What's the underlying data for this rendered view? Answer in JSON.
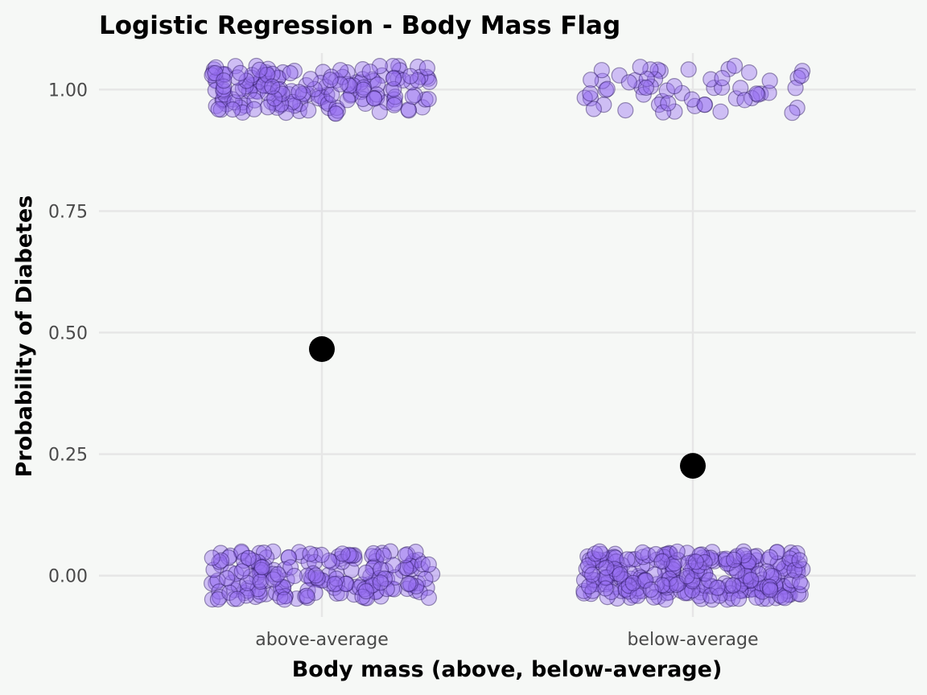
{
  "chart_data": {
    "type": "scatter",
    "title": "Logistic Regression - Body Mass Flag",
    "xlabel": "Body mass (above, below-average)",
    "ylabel": "Probability of Diabetes",
    "categories": [
      "above-average",
      "below-average"
    ],
    "yticks": [
      0.0,
      0.25,
      0.5,
      0.75,
      1.0
    ],
    "ytick_labels": [
      "0.00",
      "0.25",
      "0.50",
      "0.75",
      "1.00"
    ],
    "ylim": [
      -0.085,
      1.075
    ],
    "grid": true,
    "legend": "none",
    "predicted_probability": [
      {
        "category": "above-average",
        "value": 0.466
      },
      {
        "category": "below-average",
        "value": 0.226
      }
    ],
    "observations": [
      {
        "category": "above-average",
        "outcome": 1,
        "count": 170
      },
      {
        "category": "above-average",
        "outcome": 0,
        "count": 190
      },
      {
        "category": "below-average",
        "outcome": 1,
        "count": 60
      },
      {
        "category": "below-average",
        "outcome": 0,
        "count": 280
      }
    ],
    "jitter": {
      "x_width": 0.3,
      "y_height": 0.05
    },
    "colors": {
      "point_fill": "#966ef0",
      "point_edge": "#28145a",
      "mean": "#000000",
      "background": "#f6f8f6"
    }
  }
}
